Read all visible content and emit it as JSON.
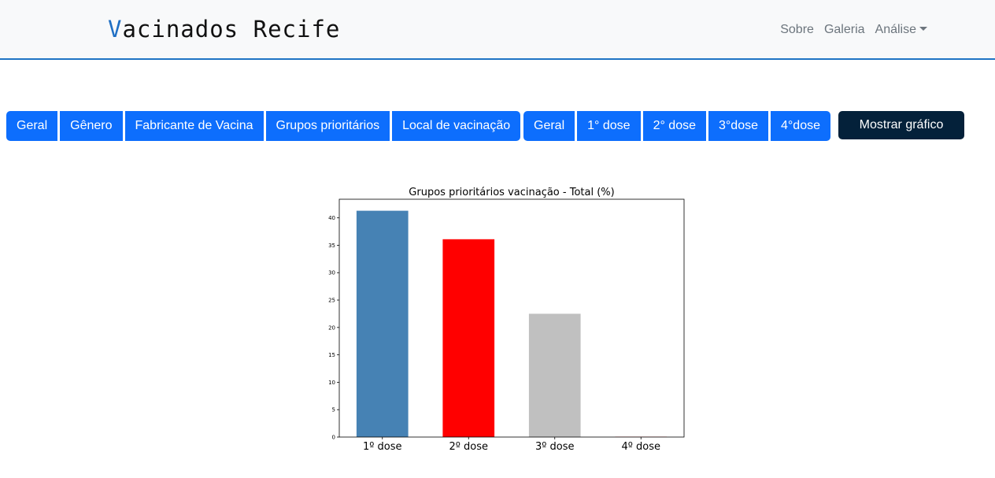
{
  "brand": {
    "first_letter": "V",
    "rest": "acinados Recife"
  },
  "nav": {
    "sobre": "Sobre",
    "galeria": "Galeria",
    "analise": "Análise"
  },
  "category_buttons": [
    "Geral",
    "Gênero",
    "Fabricante de Vacina",
    "Grupos prioritários",
    "Local de vacinação"
  ],
  "dose_buttons": [
    "Geral",
    "1° dose",
    "2° dose",
    "3°dose",
    "4°dose"
  ],
  "show_button": "Mostrar gráfico",
  "colors": {
    "accent": "#0d6efd",
    "navbar_border": "#1f74c4",
    "dark_button": "#04213a"
  },
  "chart_data": {
    "type": "bar",
    "title": "Grupos prioritários vacinação - Total (%)",
    "categories": [
      "1º dose",
      "2º dose",
      "3º dose",
      "4º dose"
    ],
    "values": [
      41.3,
      36.1,
      22.5,
      0.05
    ],
    "colors": [
      "#4682b4",
      "#ff0000",
      "#c0c0c0",
      "#ff0000"
    ],
    "yticks": [
      "0",
      "5",
      "10",
      "15",
      "20",
      "25",
      "30",
      "35",
      "40"
    ],
    "ylim": [
      0,
      43.4
    ],
    "xlabel": "",
    "ylabel": "",
    "grid": false
  }
}
